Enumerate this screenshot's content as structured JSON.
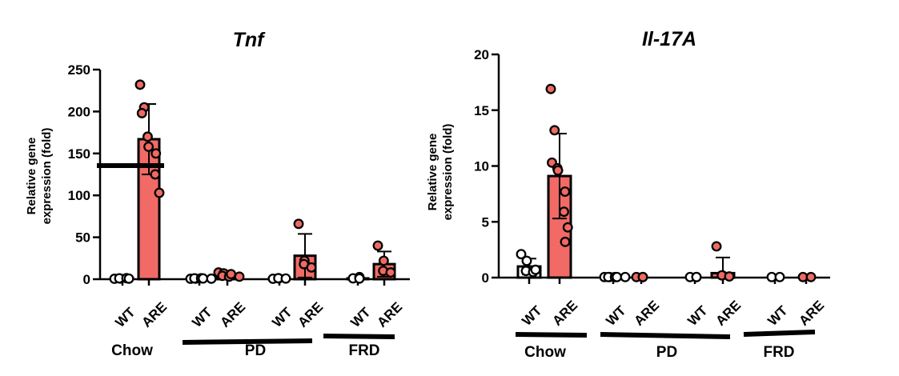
{
  "colors": {
    "wt_fill": "#ffffff",
    "are_fill": "#ee6a62",
    "are_bar": "#f16a66",
    "line": "#000000"
  },
  "chart_data": [
    {
      "type": "bar",
      "title": "Tnf",
      "ylabel": "Relative gene expression (fold)",
      "ylim": [
        0,
        250
      ],
      "yticks": [
        "0",
        "50",
        "100",
        "150",
        "200",
        "250"
      ],
      "categories": [
        "WT",
        "ARE",
        "WT",
        "ARE",
        "WT",
        "ARE",
        "WT",
        "ARE"
      ],
      "groups": [
        {
          "label": "Chow",
          "from": 0,
          "to": 1
        },
        {
          "label": "PD",
          "from": 2,
          "to": 5
        },
        {
          "label": "FRD",
          "from": 6,
          "to": 7
        }
      ],
      "series": [
        {
          "category": "WT",
          "group": "Chow",
          "mean": 1,
          "sd": 0.5,
          "points": [
            0.5,
            0.8,
            1,
            1.2,
            0.7
          ]
        },
        {
          "category": "ARE",
          "group": "Chow",
          "mean": 167,
          "sd": 42,
          "points": [
            232,
            205,
            198,
            170,
            158,
            150,
            125,
            103
          ]
        },
        {
          "category": "WT",
          "group": "PD",
          "mean": 1,
          "sd": 0.5,
          "points": [
            0.5,
            0.7,
            1,
            1.1,
            0.9,
            0.6
          ]
        },
        {
          "category": "ARE",
          "group": "PD",
          "mean": 5,
          "sd": 2.5,
          "points": [
            8,
            7,
            4,
            3,
            6,
            3
          ]
        },
        {
          "category": "WT",
          "group": "PD",
          "mean": 1,
          "sd": 0.5,
          "points": [
            0.5,
            1,
            1.2,
            0.8
          ]
        },
        {
          "category": "ARE",
          "group": "PD",
          "mean": 28,
          "sd": 26,
          "points": [
            66,
            22,
            18,
            14
          ]
        },
        {
          "category": "WT",
          "group": "FRD",
          "mean": 1,
          "sd": 0.8,
          "points": [
            1,
            2.5,
            0.8
          ]
        },
        {
          "category": "ARE",
          "group": "FRD",
          "mean": 18,
          "sd": 15,
          "points": [
            40,
            22,
            10,
            8
          ]
        }
      ]
    },
    {
      "type": "bar",
      "title": "Il-17A",
      "ylabel": "Relative gene expression (fold)",
      "ylim": [
        0,
        20
      ],
      "yticks": [
        "0",
        "5",
        "10",
        "15",
        "20"
      ],
      "categories": [
        "WT",
        "ARE",
        "WT",
        "ARE",
        "WT",
        "ARE",
        "WT",
        "ARE"
      ],
      "groups": [
        {
          "label": "Chow",
          "from": 0,
          "to": 1
        },
        {
          "label": "PD",
          "from": 2,
          "to": 5
        },
        {
          "label": "FRD",
          "from": 6,
          "to": 7
        }
      ],
      "series": [
        {
          "category": "WT",
          "group": "Chow",
          "mean": 1,
          "sd": 0.7,
          "points": [
            2.1,
            1.5,
            0.6,
            0.5,
            0.7
          ]
        },
        {
          "category": "ARE",
          "group": "Chow",
          "mean": 9.1,
          "sd": 3.8,
          "points": [
            16.9,
            13.2,
            10.3,
            9.8,
            9.6,
            7.7,
            5.9,
            4.5,
            3.2
          ]
        },
        {
          "category": "WT",
          "group": "PD",
          "mean": 0.05,
          "sd": 0.02,
          "points": [
            0.05,
            0.05,
            0.05,
            0.05,
            0.05,
            0.05
          ]
        },
        {
          "category": "ARE",
          "group": "PD",
          "mean": 0.05,
          "sd": 0.02,
          "points": [
            0.05,
            0.05,
            0.05
          ]
        },
        {
          "category": "WT",
          "group": "PD",
          "mean": 0.05,
          "sd": 0.02,
          "points": [
            0.05,
            0.05,
            0.05
          ]
        },
        {
          "category": "ARE",
          "group": "PD",
          "mean": 0.4,
          "sd": 1.4,
          "points": [
            2.8,
            0.2,
            0.2,
            0.1
          ]
        },
        {
          "category": "WT",
          "group": "FRD",
          "mean": 0.05,
          "sd": 0.02,
          "points": [
            0.05,
            0.05
          ]
        },
        {
          "category": "ARE",
          "group": "FRD",
          "mean": 0.05,
          "sd": 0.02,
          "points": [
            0.05,
            0.05
          ]
        }
      ]
    }
  ]
}
